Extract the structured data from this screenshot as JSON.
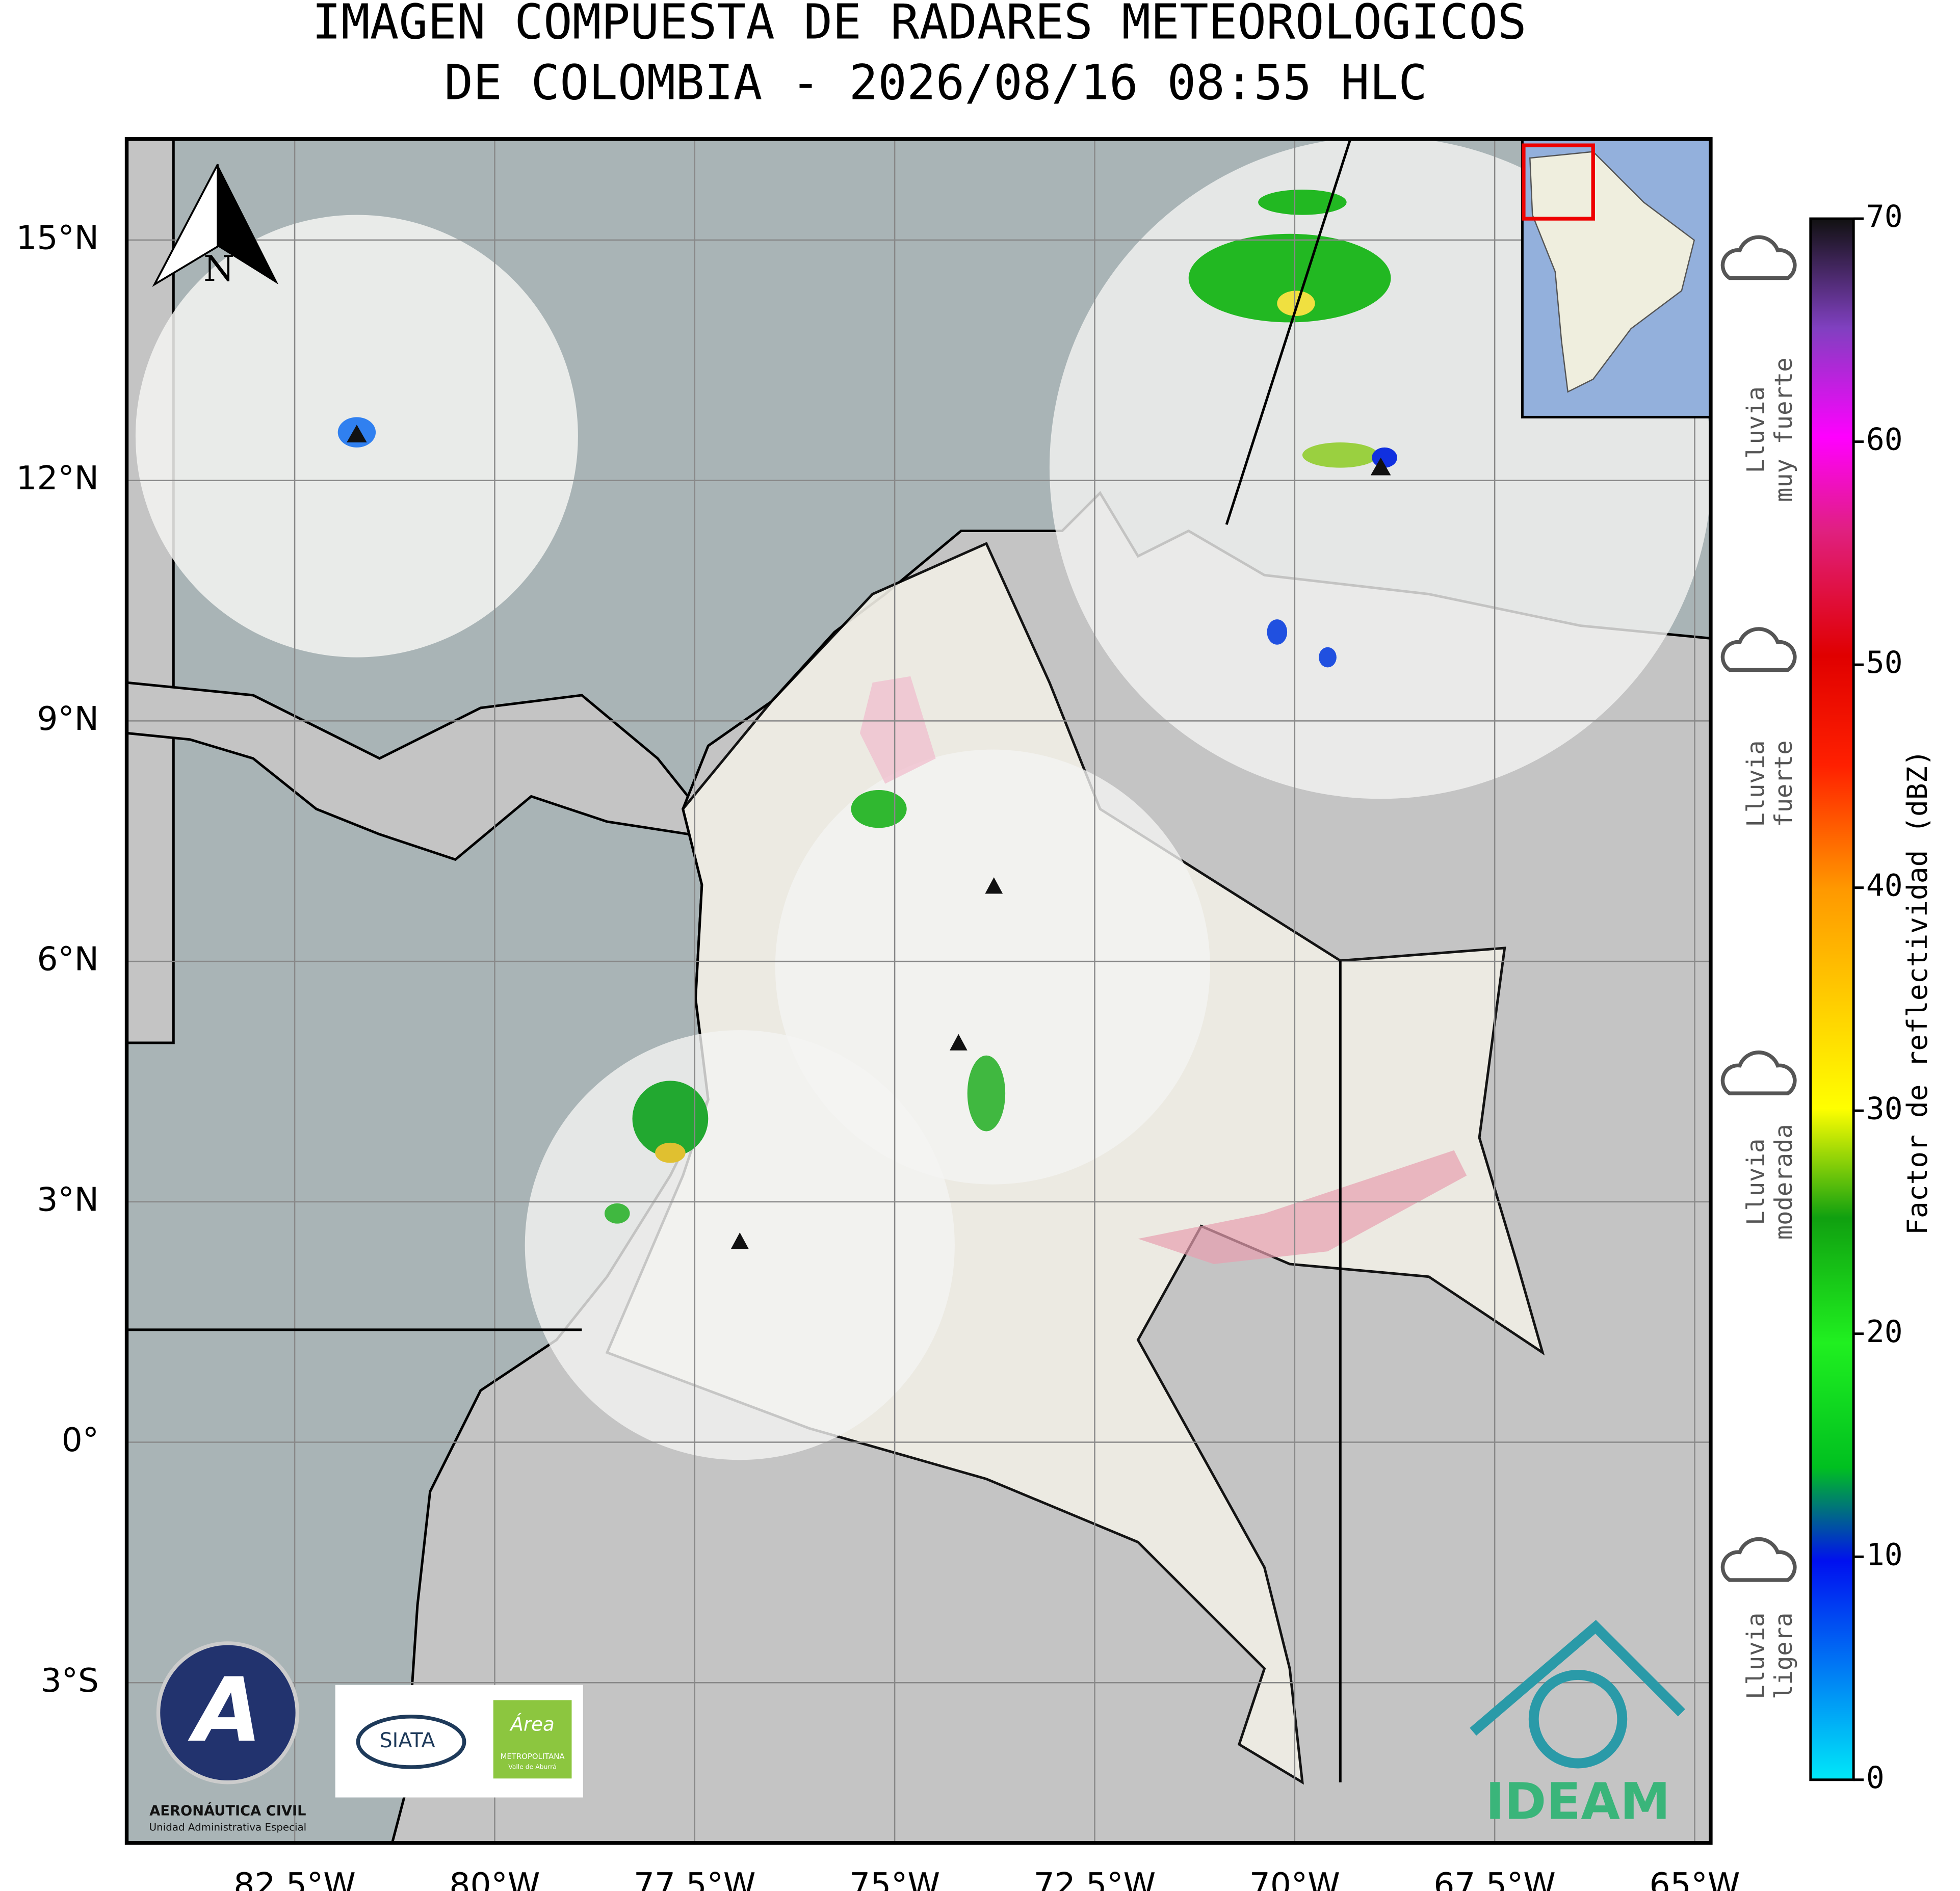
{
  "header": {
    "title_lines": [
      "IMAGEN COMPUESTA DE RADARES METEOROLOGICOS",
      "DE COLOMBIA - 2026/08/16 08:55 HLC"
    ]
  },
  "map": {
    "lon_range": [
      -84.6,
      -64.8
    ],
    "lat_range": [
      -5.0,
      16.26
    ],
    "grid": true,
    "north_label": "N",
    "lon_ticks": [
      {
        "value": -82.5,
        "label": "82.5°W"
      },
      {
        "value": -80,
        "label": "80°W"
      },
      {
        "value": -77.5,
        "label": "77.5°W"
      },
      {
        "value": -75,
        "label": "75°W"
      },
      {
        "value": -72.5,
        "label": "72.5°W"
      },
      {
        "value": -70,
        "label": "70°W"
      },
      {
        "value": -67.5,
        "label": "67.5°W"
      },
      {
        "value": -65,
        "label": "65°W"
      }
    ],
    "lat_ticks": [
      {
        "value": 15,
        "label": "15°N"
      },
      {
        "value": 12,
        "label": "12°N"
      },
      {
        "value": 9,
        "label": "9°N"
      },
      {
        "value": 6,
        "label": "6°N"
      },
      {
        "value": 3,
        "label": "3°N"
      },
      {
        "value": 0,
        "label": "0°"
      },
      {
        "value": -3,
        "label": "3°S"
      }
    ]
  },
  "colorbar": {
    "label": "Factor de reflectividad (dBZ)",
    "range": [
      0,
      70
    ],
    "ticks": [
      0,
      10,
      20,
      30,
      40,
      50,
      60,
      70
    ]
  },
  "rain_legend": [
    {
      "lines": [
        "Lluvia",
        "muy fuerte"
      ]
    },
    {
      "lines": [
        "Lluvia",
        "fuerte"
      ]
    },
    {
      "lines": [
        "Lluvia",
        "moderada"
      ]
    },
    {
      "lines": [
        "Lluvia",
        "ligera"
      ]
    }
  ],
  "logos": {
    "aerocivil": "AERONÁUTICA CIVIL",
    "aerocivil_sub": "Unidad Administrativa Especial",
    "siata": "SIATA",
    "area": "Área",
    "area_sub1": "METROPOLITANA",
    "area_sub2": "Valle de Aburrá",
    "ideam": "IDEAM"
  }
}
